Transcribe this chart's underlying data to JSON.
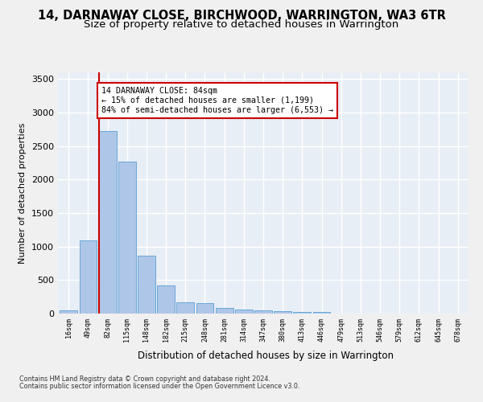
{
  "title": "14, DARNAWAY CLOSE, BIRCHWOOD, WARRINGTON, WA3 6TR",
  "subtitle": "Size of property relative to detached houses in Warrington",
  "xlabel": "Distribution of detached houses by size in Warrington",
  "ylabel": "Number of detached properties",
  "bin_labels": [
    "16sqm",
    "49sqm",
    "82sqm",
    "115sqm",
    "148sqm",
    "182sqm",
    "215sqm",
    "248sqm",
    "281sqm",
    "314sqm",
    "347sqm",
    "380sqm",
    "413sqm",
    "446sqm",
    "479sqm",
    "513sqm",
    "546sqm",
    "579sqm",
    "612sqm",
    "645sqm",
    "678sqm"
  ],
  "bar_values": [
    50,
    1090,
    2720,
    2270,
    870,
    415,
    170,
    160,
    90,
    65,
    50,
    35,
    30,
    20,
    0,
    0,
    0,
    0,
    0,
    0,
    0
  ],
  "bar_color": "#aec6e8",
  "bar_edge_color": "#5a9fd4",
  "property_line_bin_index": 2,
  "property_line_color": "#cc0000",
  "annotation_text": "14 DARNAWAY CLOSE: 84sqm\n← 15% of detached houses are smaller (1,199)\n84% of semi-detached houses are larger (6,553) →",
  "annotation_box_color": "#ffffff",
  "annotation_box_edge": "#cc0000",
  "ylim": [
    0,
    3600
  ],
  "yticks": [
    0,
    500,
    1000,
    1500,
    2000,
    2500,
    3000,
    3500
  ],
  "background_color": "#e8eef5",
  "grid_color": "#ffffff",
  "footer_line1": "Contains HM Land Registry data © Crown copyright and database right 2024.",
  "footer_line2": "Contains public sector information licensed under the Open Government Licence v3.0.",
  "title_fontsize": 10.5,
  "subtitle_fontsize": 9.5,
  "fig_facecolor": "#f0f0f0"
}
